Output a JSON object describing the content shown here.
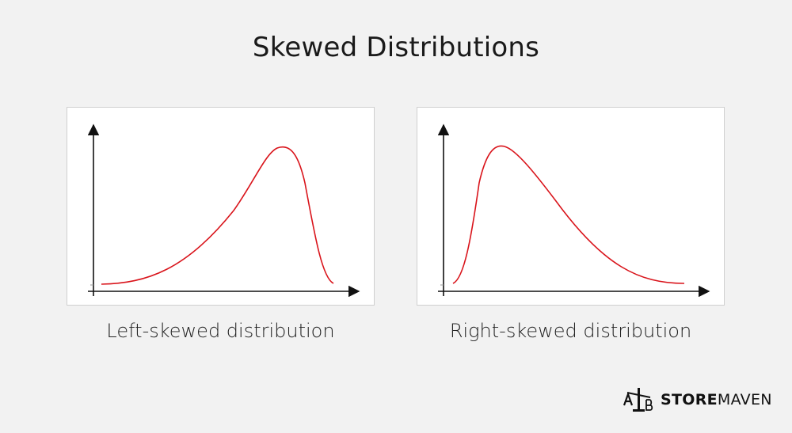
{
  "title": "Skewed Distributions",
  "panels": [
    {
      "caption": "Left-skewed distribution",
      "skew": "left"
    },
    {
      "caption": "Right-skewed distribution",
      "skew": "right"
    }
  ],
  "colors": {
    "background": "#f2f2f2",
    "panel": "#ffffff",
    "curve": "#d9141b",
    "axis": "#111111"
  },
  "brand": {
    "logo_icon": "ab-scale-icon",
    "name_bold": "STORE",
    "name_light": "MAVEN"
  }
}
